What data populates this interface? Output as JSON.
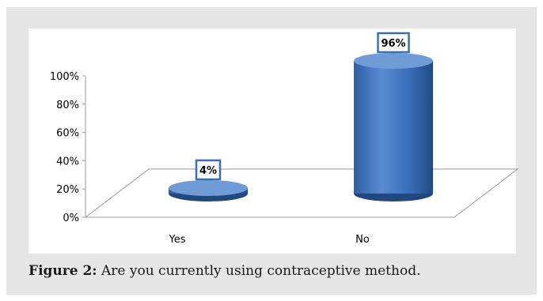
{
  "caption": {
    "label": "Figure 2:",
    "text": "Are you currently using contraceptive method."
  },
  "colors": {
    "bar_body": "#3a6fb8",
    "bar_dark": "#20487f",
    "bar_light": "#6f9bd6",
    "label_border": "#3a6fb8"
  },
  "chart_data": {
    "type": "bar",
    "categories": [
      "Yes",
      "No"
    ],
    "values": [
      4,
      96
    ],
    "data_labels": [
      "4%",
      "96%"
    ],
    "yticks": [
      "0%",
      "20%",
      "40%",
      "60%",
      "80%",
      "100%"
    ],
    "ylim": [
      0,
      100
    ],
    "title": "",
    "xlabel": "",
    "ylabel": "",
    "grid": false,
    "legend": "none"
  }
}
